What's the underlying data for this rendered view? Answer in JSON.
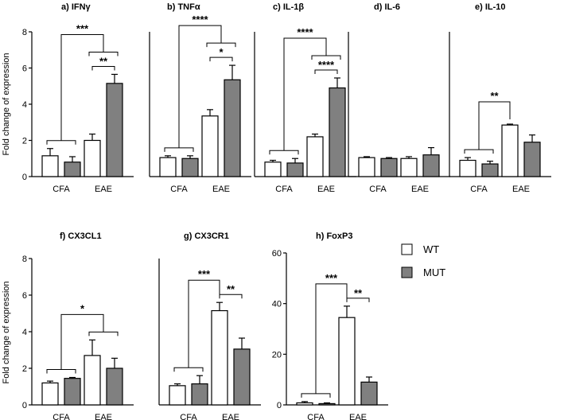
{
  "figure": {
    "legend": [
      {
        "label": "WT",
        "color": "#ffffff"
      },
      {
        "label": "MUT",
        "color": "#808080"
      }
    ],
    "ylabel": "Fold change of expression"
  },
  "chart_data": [
    {
      "type": "bar",
      "title": "a) IFNγ",
      "categories": [
        "CFA",
        "EAE"
      ],
      "series": [
        {
          "name": "WT",
          "values": [
            1.15,
            2.0
          ],
          "errors": [
            0.4,
            0.35
          ]
        },
        {
          "name": "MUT",
          "values": [
            0.8,
            5.15
          ],
          "errors": [
            0.3,
            0.5
          ]
        }
      ],
      "ylim": [
        0,
        8
      ],
      "yticks": [
        0,
        2,
        4,
        6,
        8
      ],
      "annotations": [
        {
          "text": "***",
          "between": "CFA vs EAE-MUT"
        },
        {
          "text": "**",
          "between": "EAE WT vs MUT"
        }
      ]
    },
    {
      "type": "bar",
      "title": "b) TNFα",
      "categories": [
        "CFA",
        "EAE"
      ],
      "series": [
        {
          "name": "WT",
          "values": [
            1.05,
            3.35
          ],
          "errors": [
            0.1,
            0.35
          ]
        },
        {
          "name": "MUT",
          "values": [
            1.0,
            5.35
          ],
          "errors": [
            0.15,
            0.8
          ]
        }
      ],
      "ylim": [
        0,
        8
      ],
      "annotations": [
        {
          "text": "****",
          "between": "CFA vs EAE"
        },
        {
          "text": "*",
          "between": "EAE WT vs MUT"
        }
      ]
    },
    {
      "type": "bar",
      "title": "c) IL-1β",
      "categories": [
        "CFA",
        "EAE"
      ],
      "series": [
        {
          "name": "WT",
          "values": [
            0.8,
            2.2
          ],
          "errors": [
            0.1,
            0.15
          ]
        },
        {
          "name": "MUT",
          "values": [
            0.75,
            4.9
          ],
          "errors": [
            0.25,
            0.55
          ]
        }
      ],
      "ylim": [
        0,
        8
      ],
      "annotations": [
        {
          "text": "****",
          "between": "CFA vs EAE"
        },
        {
          "text": "****",
          "between": "EAE WT vs MUT"
        }
      ]
    },
    {
      "type": "bar",
      "title": "d) IL-6",
      "categories": [
        "CFA",
        "EAE"
      ],
      "series": [
        {
          "name": "WT",
          "values": [
            1.05,
            1.0
          ],
          "errors": [
            0.05,
            0.1
          ]
        },
        {
          "name": "MUT",
          "values": [
            1.0,
            1.2
          ],
          "errors": [
            0.05,
            0.4
          ]
        }
      ],
      "ylim": [
        0,
        8
      ],
      "annotations": []
    },
    {
      "type": "bar",
      "title": "e) IL-10",
      "categories": [
        "CFA",
        "EAE"
      ],
      "series": [
        {
          "name": "WT",
          "values": [
            0.9,
            2.85
          ],
          "errors": [
            0.15,
            0.05
          ]
        },
        {
          "name": "MUT",
          "values": [
            0.7,
            1.9
          ],
          "errors": [
            0.15,
            0.4
          ]
        }
      ],
      "ylim": [
        0,
        8
      ],
      "annotations": [
        {
          "text": "**",
          "between": "CFA vs EAE-WT"
        }
      ]
    },
    {
      "type": "bar",
      "title": "f) CX3CL1",
      "categories": [
        "CFA",
        "EAE"
      ],
      "series": [
        {
          "name": "WT",
          "values": [
            1.2,
            2.7
          ],
          "errors": [
            0.1,
            0.85
          ]
        },
        {
          "name": "MUT",
          "values": [
            1.45,
            2.0
          ],
          "errors": [
            0.05,
            0.55
          ]
        }
      ],
      "ylim": [
        0,
        8
      ],
      "yticks": [
        0,
        2,
        4,
        6,
        8
      ],
      "annotations": [
        {
          "text": "*",
          "between": "CFA vs EAE"
        }
      ]
    },
    {
      "type": "bar",
      "title": "g) CX3CR1",
      "categories": [
        "CFA",
        "EAE"
      ],
      "series": [
        {
          "name": "WT",
          "values": [
            1.05,
            5.15
          ],
          "errors": [
            0.1,
            0.45
          ]
        },
        {
          "name": "MUT",
          "values": [
            1.15,
            3.05
          ],
          "errors": [
            0.45,
            0.6
          ]
        }
      ],
      "ylim": [
        0,
        8
      ],
      "annotations": [
        {
          "text": "***",
          "between": "CFA vs EAE-WT"
        },
        {
          "text": "**",
          "between": "EAE WT vs MUT"
        }
      ]
    },
    {
      "type": "bar",
      "title": "h) FoxP3",
      "categories": [
        "CFA",
        "EAE"
      ],
      "series": [
        {
          "name": "WT",
          "values": [
            0.8,
            34.5
          ],
          "errors": [
            0.5,
            4.5
          ]
        },
        {
          "name": "MUT",
          "values": [
            0.5,
            9.0
          ],
          "errors": [
            0.3,
            2.0
          ]
        }
      ],
      "ylim": [
        0,
        60
      ],
      "yticks": [
        0,
        20,
        40,
        60
      ],
      "annotations": [
        {
          "text": "***",
          "between": "CFA vs EAE-WT"
        },
        {
          "text": "**",
          "between": "EAE WT vs MUT"
        }
      ]
    }
  ]
}
